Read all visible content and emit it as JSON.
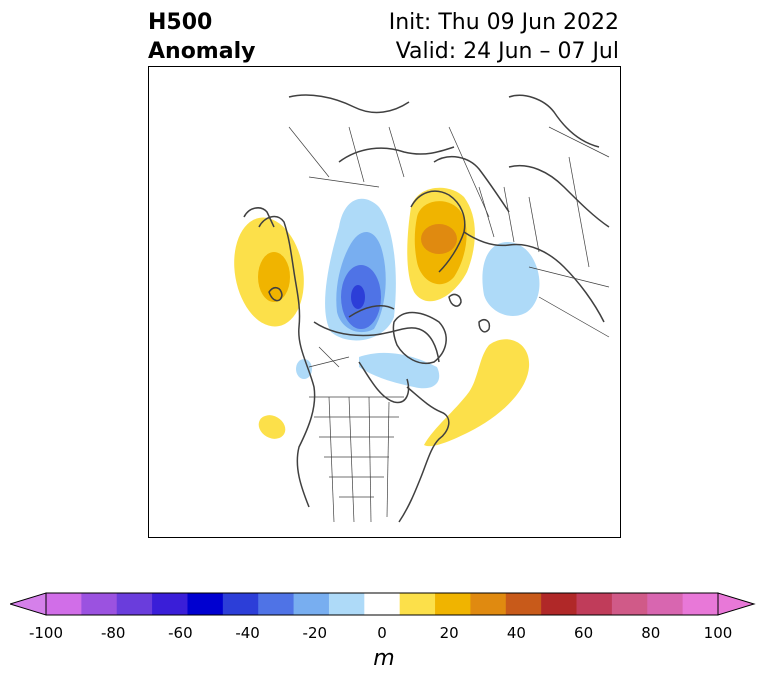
{
  "title": {
    "left_line1": "H500",
    "left_line2": "Anomaly",
    "right_line1": "Init: Thu 09 Jun 2022",
    "right_line2": "Valid: 24 Jun – 07 Jul"
  },
  "map": {
    "field": "500 hPa geopotential height anomaly",
    "anomaly_features": [
      {
        "region": "Alaska / Bering Sea",
        "sign": "positive",
        "approx_value_m": 30
      },
      {
        "region": "Arctic Ocean north of Canada",
        "sign": "negative",
        "approx_value_m": -50
      },
      {
        "region": "Greenland Sea / Svalbard / Scandinavia",
        "sign": "positive",
        "approx_value_m": 40
      },
      {
        "region": "Western Russia / Barents Sea",
        "sign": "negative",
        "approx_value_m": -20
      },
      {
        "region": "Hudson Bay / Labrador",
        "sign": "negative",
        "approx_value_m": -20
      },
      {
        "region": "North Atlantic east of Newfoundland",
        "sign": "positive",
        "approx_value_m": 20
      },
      {
        "region": "Pacific west of British Columbia",
        "sign": "positive",
        "approx_value_m": 20
      }
    ]
  },
  "colorbar": {
    "unit_label": "m",
    "ticks": [
      "-100",
      "-80",
      "-60",
      "-40",
      "-20",
      "0",
      "20",
      "40",
      "60",
      "80",
      "100"
    ],
    "colors": [
      "#d16ee8",
      "#9b52e0",
      "#6a3ddc",
      "#3a1ed8",
      "#0000d0",
      "#2c3ed8",
      "#4f73e6",
      "#78aef0",
      "#aedaf8",
      "#ffffff",
      "#fce04a",
      "#f0b400",
      "#e08a10",
      "#c85a1a",
      "#b02828",
      "#c03c5a",
      "#d05a88",
      "#d866b0",
      "#e878d8"
    ],
    "left_extend_color": "#d580ea",
    "right_extend_color": "#e878d8"
  }
}
